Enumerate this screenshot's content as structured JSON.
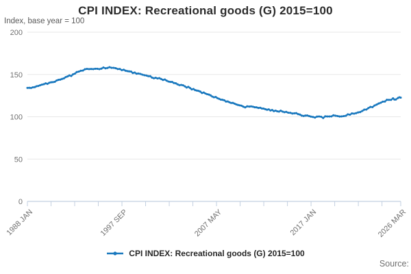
{
  "header": {
    "title": "CPI INDEX: Recreational goods (G) 2015=100",
    "y_axis_note": "Index, base year = 100"
  },
  "legend": {
    "label": "CPI INDEX: Recreational goods (G) 2015=100"
  },
  "footer": {
    "source_label": "Source:"
  },
  "colors": {
    "line": "#1978be",
    "grid": "#e7e7e7",
    "axis": "#c2cfe0",
    "tick_label": "#6f6f6f",
    "title_text": "#2b2b2b",
    "legend_text": "#262626"
  },
  "chart_data": {
    "type": "line",
    "title": "CPI INDEX: Recreational goods (G) 2015=100",
    "xlabel": "",
    "ylabel": "Index, base year = 100",
    "grid": "horizontal",
    "legend_position": "bottom",
    "y_axis": {
      "ticks": [
        0,
        50,
        100,
        150,
        200
      ],
      "range": [
        0,
        200
      ]
    },
    "x_axis": {
      "range_years": [
        1988.0,
        2026.1667
      ],
      "labeled_ticks": [
        {
          "label": "1988 JAN",
          "year": 1988.0
        },
        {
          "label": "1997 SEP",
          "year": 1997.6667
        },
        {
          "label": "2007 MAY",
          "year": 2007.3333
        },
        {
          "label": "2017 JAN",
          "year": 2017.0
        },
        {
          "label": "2026 MAR",
          "year": 2026.1667
        }
      ],
      "minor_ticks_years": [
        1988.0,
        1990.4167,
        1992.8333,
        1995.25,
        1997.6667,
        2000.0833,
        2002.5,
        2004.9167,
        2007.3333,
        2009.75,
        2012.1667,
        2014.5833,
        2017.0,
        2019.4167,
        2021.8333,
        2024.25,
        2026.1667
      ]
    },
    "series": [
      {
        "name": "CPI INDEX: Recreational goods (G) 2015=100",
        "color": "#1978be",
        "markers": true,
        "points": [
          [
            1988.0,
            133.4
          ],
          [
            1988.56,
            135.2
          ],
          [
            1989.12,
            136.6
          ],
          [
            1989.68,
            138.1
          ],
          [
            1990.24,
            140.0
          ],
          [
            1990.8,
            142.1
          ],
          [
            1991.36,
            144.4
          ],
          [
            1991.92,
            146.6
          ],
          [
            1992.48,
            149.0
          ],
          [
            1993.04,
            152.3
          ],
          [
            1993.46,
            154.4
          ],
          [
            1993.88,
            155.9
          ],
          [
            1994.3,
            156.7
          ],
          [
            1994.72,
            155.8
          ],
          [
            1995.14,
            156.1
          ],
          [
            1995.56,
            157.1
          ],
          [
            1995.98,
            157.9
          ],
          [
            1996.4,
            158.5
          ],
          [
            1996.82,
            157.9
          ],
          [
            1997.24,
            156.9
          ],
          [
            1997.66,
            155.7
          ],
          [
            1998.22,
            153.9
          ],
          [
            1998.78,
            152.4
          ],
          [
            1999.34,
            151.1
          ],
          [
            1999.76,
            150.4
          ],
          [
            2000.18,
            148.9
          ],
          [
            2000.74,
            146.9
          ],
          [
            2001.3,
            145.4
          ],
          [
            2001.86,
            143.9
          ],
          [
            2002.42,
            142.3
          ],
          [
            2002.98,
            140.4
          ],
          [
            2003.54,
            138.2
          ],
          [
            2004.1,
            136.0
          ],
          [
            2004.8,
            133.2
          ],
          [
            2005.5,
            130.2
          ],
          [
            2006.2,
            127.2
          ],
          [
            2006.9,
            124.2
          ],
          [
            2007.6,
            121.4
          ],
          [
            2008.3,
            118.6
          ],
          [
            2009.0,
            116.0
          ],
          [
            2009.7,
            113.5
          ],
          [
            2010.26,
            111.5
          ],
          [
            2010.68,
            111.9
          ],
          [
            2011.24,
            111.2
          ],
          [
            2011.8,
            110.1
          ],
          [
            2012.5,
            108.6
          ],
          [
            2013.2,
            107.4
          ],
          [
            2013.9,
            106.4
          ],
          [
            2014.46,
            105.1
          ],
          [
            2014.88,
            104.1
          ],
          [
            2015.3,
            104.7
          ],
          [
            2015.86,
            102.6
          ],
          [
            2016.42,
            101.3
          ],
          [
            2016.98,
            99.9
          ],
          [
            2017.4,
            99.4
          ],
          [
            2017.82,
            99.7
          ],
          [
            2018.24,
            99.3
          ],
          [
            2018.66,
            100.3
          ],
          [
            2019.08,
            101.0
          ],
          [
            2019.5,
            101.2
          ],
          [
            2019.92,
            100.8
          ],
          [
            2020.34,
            101.4
          ],
          [
            2020.76,
            102.3
          ],
          [
            2021.18,
            103.3
          ],
          [
            2021.6,
            104.6
          ],
          [
            2022.02,
            106.1
          ],
          [
            2022.44,
            107.9
          ],
          [
            2022.86,
            110.1
          ],
          [
            2023.28,
            112.2
          ],
          [
            2023.7,
            114.6
          ],
          [
            2024.12,
            117.0
          ],
          [
            2024.54,
            118.8
          ],
          [
            2024.96,
            120.2
          ],
          [
            2025.38,
            121.2
          ],
          [
            2025.66,
            120.9
          ],
          [
            2025.9,
            121.9
          ],
          [
            2026.1667,
            122.7
          ]
        ]
      }
    ]
  }
}
